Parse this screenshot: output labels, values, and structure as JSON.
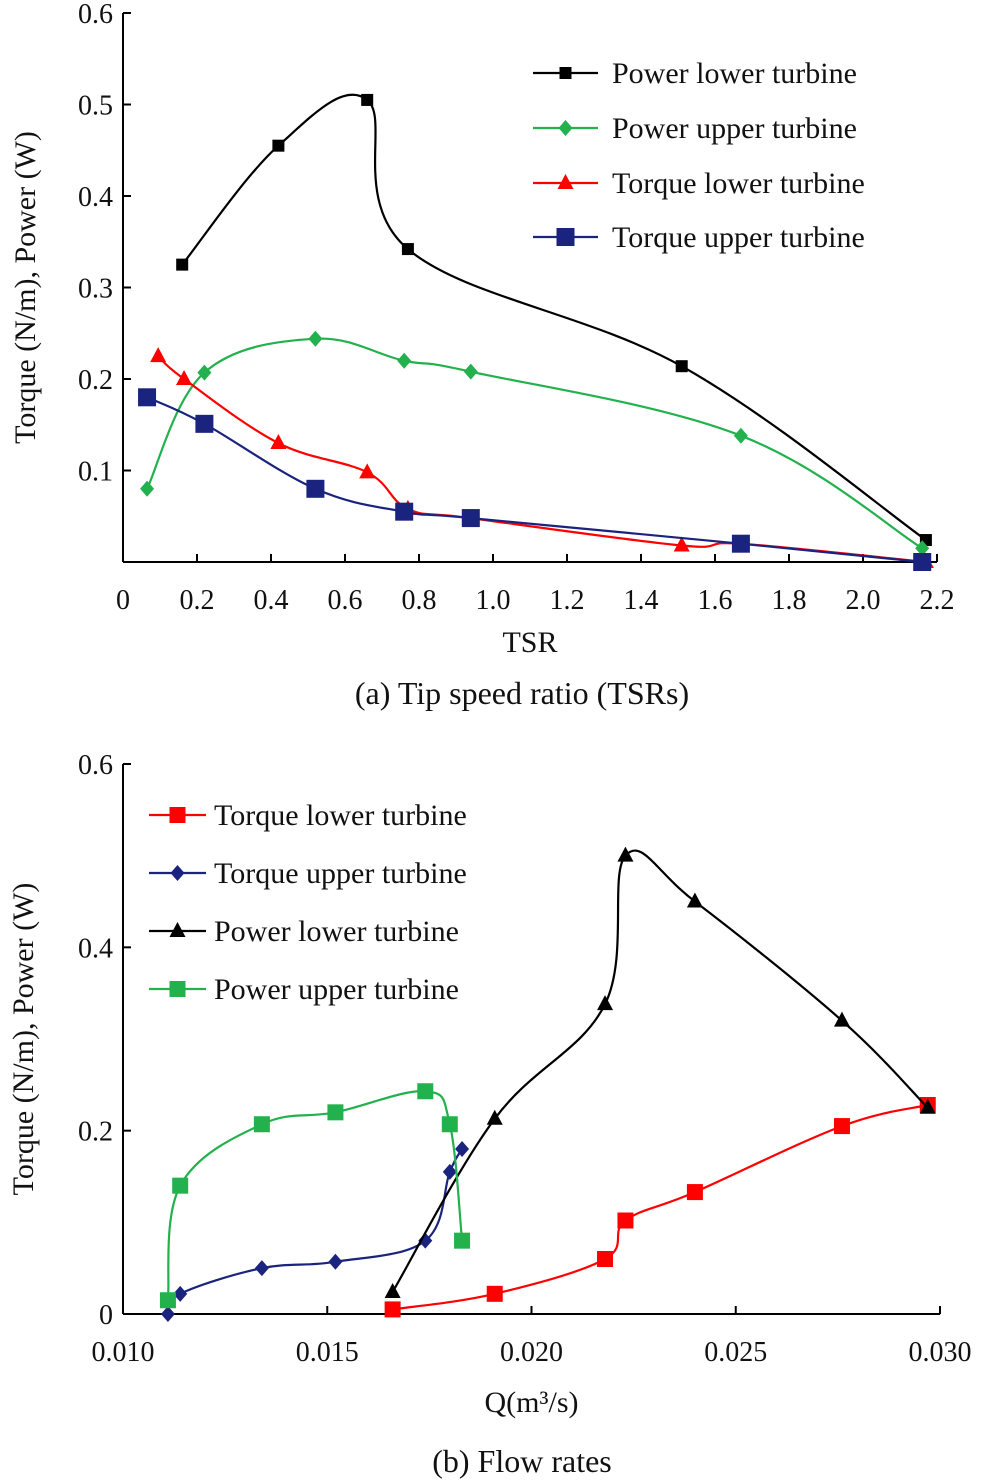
{
  "chart_data": [
    {
      "type": "line",
      "caption": "(a) Tip speed ratio (TSRs)",
      "xlabel": "TSR",
      "ylabel": "Torque (N/m), Power (W)",
      "xlim": [
        0,
        2.2
      ],
      "ylim": [
        0,
        0.6
      ],
      "xticks": [
        "0",
        "0.2",
        "0.4",
        "0.6",
        "0.8",
        "1.0",
        "1.2",
        "1.4",
        "1.6",
        "1.8",
        "2.0",
        "2.2"
      ],
      "yticks": [
        "0.1",
        "0.2",
        "0.3",
        "0.4",
        "0.5",
        "0.6"
      ],
      "legend_position": "top-right",
      "series": [
        {
          "name": "Power lower turbine",
          "color": "#000000",
          "marker": "square-small",
          "x": [
            0.16,
            0.42,
            0.66,
            0.77,
            1.51,
            2.17
          ],
          "y": [
            0.325,
            0.455,
            0.505,
            0.342,
            0.214,
            0.024
          ]
        },
        {
          "name": "Power upper turbine",
          "color": "#22b14c",
          "marker": "diamond",
          "x": [
            0.065,
            0.22,
            0.52,
            0.76,
            0.94,
            1.67,
            2.16
          ],
          "y": [
            0.08,
            0.207,
            0.244,
            0.22,
            0.208,
            0.138,
            0.015
          ]
        },
        {
          "name": "Torque lower turbine",
          "color": "#ff0000",
          "marker": "triangle",
          "x": [
            0.095,
            0.165,
            0.42,
            0.66,
            0.77,
            0.94,
            1.51,
            1.67,
            2.17
          ],
          "y": [
            0.225,
            0.2,
            0.13,
            0.098,
            0.058,
            0.048,
            0.018,
            0.02,
            0.0
          ]
        },
        {
          "name": "Torque upper turbine",
          "color": "#1a237e",
          "marker": "square-large",
          "x": [
            0.065,
            0.22,
            0.52,
            0.76,
            0.94,
            1.67,
            2.16
          ],
          "y": [
            0.18,
            0.151,
            0.08,
            0.055,
            0.048,
            0.02,
            0.0
          ]
        }
      ]
    },
    {
      "type": "line",
      "caption": "(b) Flow rates",
      "xlabel": "Q(m³/s)",
      "ylabel": "Torque (N/m), Power (W)",
      "xlim": [
        0.01,
        0.03
      ],
      "ylim": [
        0,
        0.6
      ],
      "xticks": [
        "0.010",
        "0.015",
        "0.020",
        "0.025",
        "0.030"
      ],
      "yticks": [
        "0",
        "0.2",
        "0.4",
        "0.6"
      ],
      "legend_position": "top-left",
      "series": [
        {
          "name": "Torque lower turbine",
          "color": "#ff0000",
          "marker": "square",
          "x": [
            0.0166,
            0.0191,
            0.0218,
            0.0223,
            0.024,
            0.0276,
            0.0297
          ],
          "y": [
            0.005,
            0.022,
            0.06,
            0.102,
            0.133,
            0.205,
            0.228
          ]
        },
        {
          "name": "Torque upper turbine",
          "color": "#1a237e",
          "marker": "diamond",
          "x": [
            0.0111,
            0.0114,
            0.0134,
            0.0152,
            0.0174,
            0.018,
            0.0183
          ],
          "y": [
            0.0,
            0.022,
            0.05,
            0.057,
            0.08,
            0.155,
            0.18
          ]
        },
        {
          "name": "Power lower turbine",
          "color": "#000000",
          "marker": "triangle",
          "x": [
            0.0166,
            0.0191,
            0.0218,
            0.0223,
            0.024,
            0.0276,
            0.0297
          ],
          "y": [
            0.024,
            0.213,
            0.338,
            0.5,
            0.45,
            0.32,
            0.225
          ]
        },
        {
          "name": "Power upper turbine",
          "color": "#22b14c",
          "marker": "square",
          "x": [
            0.0111,
            0.0114,
            0.0134,
            0.0152,
            0.0174,
            0.018,
            0.0183
          ],
          "y": [
            0.015,
            0.14,
            0.207,
            0.22,
            0.243,
            0.207,
            0.08
          ]
        }
      ]
    }
  ]
}
